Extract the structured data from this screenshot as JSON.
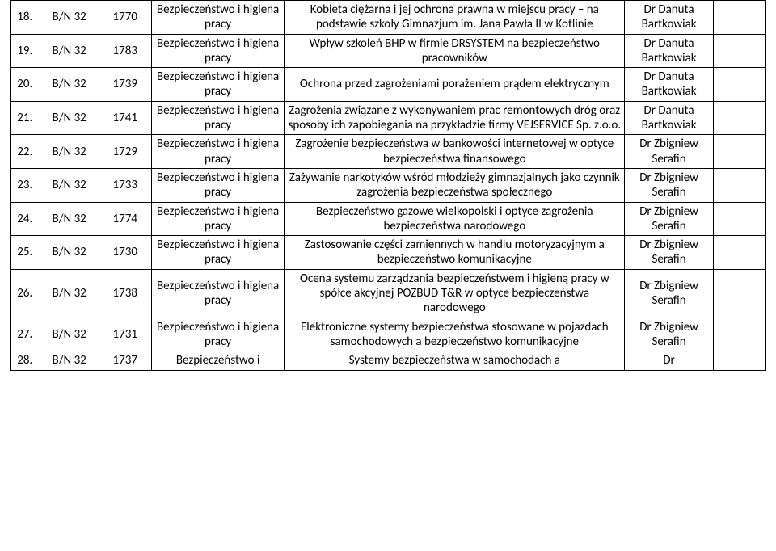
{
  "table": {
    "rows": [
      {
        "num": "18.",
        "code": "B/N 32",
        "id": "1770",
        "cat": "Bezpieczeństwo i higiena pracy",
        "desc": "Kobieta ciężarna i jej ochrona prawna w miejscu pracy – na podstawie szkoły Gimnazjum im. Jana Pawła II w Kotlinie",
        "who": "Dr Danuta Bartkowiak",
        "end": ""
      },
      {
        "num": "19.",
        "code": "B/N 32",
        "id": "1783",
        "cat": "Bezpieczeństwo i higiena pracy",
        "desc": "Wpływ szkoleń BHP w firmie DRSYSTEM na bezpieczeństwo pracowników",
        "who": "Dr Danuta Bartkowiak",
        "end": ""
      },
      {
        "num": "20.",
        "code": "B/N 32",
        "id": "1739",
        "cat": "Bezpieczeństwo i higiena pracy",
        "desc": "Ochrona przed zagrożeniami porażeniem prądem elektrycznym",
        "who": "Dr Danuta Bartkowiak",
        "end": ""
      },
      {
        "num": "21.",
        "code": "B/N 32",
        "id": "1741",
        "cat": "Bezpieczeństwo i higiena pracy",
        "desc": "Zagrożenia związane z wykonywaniem prac remontowych dróg oraz sposoby ich zapobiegania na przykładzie firmy VEJSERVICE Sp. z.o.o.",
        "who": "Dr Danuta Bartkowiak",
        "end": ""
      },
      {
        "num": "22.",
        "code": "B/N 32",
        "id": "1729",
        "cat": "Bezpieczeństwo i higiena pracy",
        "desc": "Zagrożenie bezpieczeństwa w bankowości internetowej w optyce bezpieczeństwa finansowego",
        "who": "Dr Zbigniew Serafin",
        "end": ""
      },
      {
        "num": "23.",
        "code": "B/N 32",
        "id": "1733",
        "cat": "Bezpieczeństwo i higiena pracy",
        "desc": "Zażywanie narkotyków wśród młodzieży gimnazjalnych jako czynnik zagrożenia bezpieczeństwa społecznego",
        "who": "Dr Zbigniew Serafin",
        "end": ""
      },
      {
        "num": "24.",
        "code": "B/N 32",
        "id": "1774",
        "cat": "Bezpieczeństwo i higiena pracy",
        "desc": "Bezpieczeństwo gazowe wielkopolski i optyce zagrożenia bezpieczeństwa narodowego",
        "who": "Dr Zbigniew Serafin",
        "end": ""
      },
      {
        "num": "25.",
        "code": "B/N 32",
        "id": "1730",
        "cat": "Bezpieczeństwo i higiena pracy",
        "desc": "Zastosowanie części zamiennych w handlu motoryzacyjnym a bezpieczeństwo komunikacyjne",
        "who": "Dr Zbigniew Serafin",
        "end": ""
      },
      {
        "num": "26.",
        "code": "B/N 32",
        "id": "1738",
        "cat": "Bezpieczeństwo i higiena pracy",
        "desc": "Ocena systemu zarządzania bezpieczeństwem i higieną pracy w spółce akcyjnej POZBUD T&R w optyce bezpieczeństwa narodowego",
        "who": "Dr Zbigniew Serafin",
        "end": ""
      },
      {
        "num": "27.",
        "code": "B/N 32",
        "id": "1731",
        "cat": "Bezpieczeństwo i higiena pracy",
        "desc": "Elektroniczne systemy bezpieczeństwa stosowane w pojazdach samochodowych a bezpieczeństwo komunikacyjne",
        "who": "Dr Zbigniew Serafin",
        "end": ""
      },
      {
        "num": "28.",
        "code": "B/N 32",
        "id": "1737",
        "cat": "Bezpieczeństwo i",
        "desc": "Systemy bezpieczeństwa w samochodach a",
        "who": "Dr",
        "end": ""
      }
    ]
  }
}
